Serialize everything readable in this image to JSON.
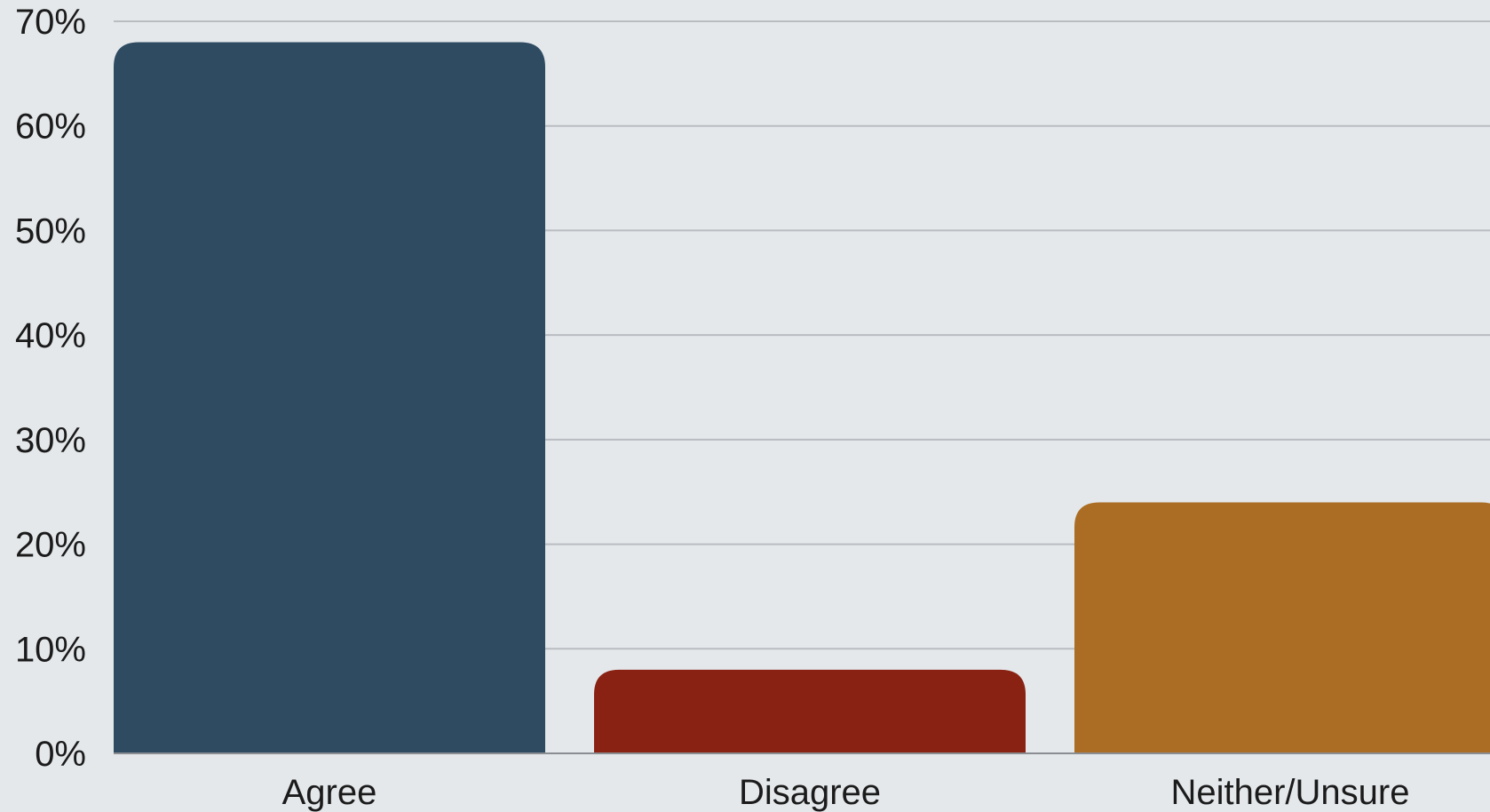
{
  "colors": {
    "background": "#e4e8eb",
    "grid": "#b9bdc1",
    "axis": "#8a8e92",
    "text": "#1b1b1b"
  },
  "chart_data": {
    "type": "bar",
    "categories": [
      "Agree",
      "Disagree",
      "Neither/Unsure"
    ],
    "values": [
      68,
      8,
      24
    ],
    "bar_colors": [
      "#2f4b62",
      "#892213",
      "#ab6d24"
    ],
    "title": "",
    "xlabel": "",
    "ylabel": "",
    "ylim": [
      0,
      70
    ],
    "y_ticks": [
      0,
      10,
      20,
      30,
      40,
      50,
      60,
      70
    ],
    "y_tick_labels": [
      "0%",
      "10%",
      "20%",
      "30%",
      "40%",
      "50%",
      "60%",
      "70%"
    ],
    "grid": true,
    "legend": "none"
  }
}
